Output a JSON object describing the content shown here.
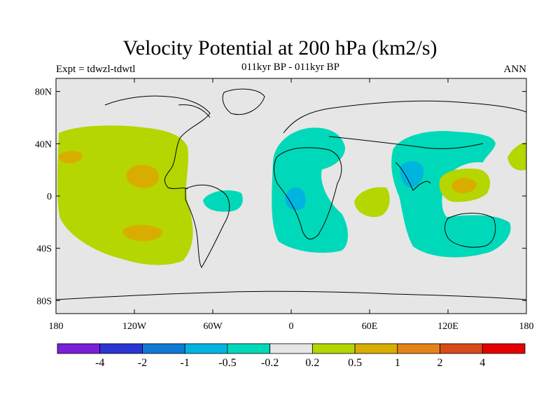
{
  "title": "Velocity Potential at 200 hPa (km2/s)",
  "subtitle": "011kyr BP - 011kyr BP",
  "experiment": "Expt = tdwzl-tdwtl",
  "season": "ANN",
  "axes": {
    "x_ticks": [
      "180",
      "120W",
      "60W",
      "0",
      "60E",
      "120E",
      "180"
    ],
    "y_ticks": [
      "80N",
      "40N",
      "0",
      "40S",
      "80S"
    ]
  },
  "colorbar": {
    "colors": [
      "#7b1fd9",
      "#2a35d3",
      "#0f7ad6",
      "#00b4e0",
      "#00d9b9",
      "#e6e6e6",
      "#b5d600",
      "#d9ad00",
      "#e6821a",
      "#d94a1a",
      "#e60000"
    ],
    "labels": [
      "-4",
      "-2",
      "-1",
      "-0.5",
      "-0.2",
      "0.2",
      "0.5",
      "1",
      "2",
      "4"
    ]
  },
  "colors": {
    "background_zero": "#e6e6e6",
    "pos_light": "#b5d600",
    "pos_mid": "#d9ad00",
    "neg_light": "#00d9b9",
    "neg_mid": "#00b4e0"
  }
}
